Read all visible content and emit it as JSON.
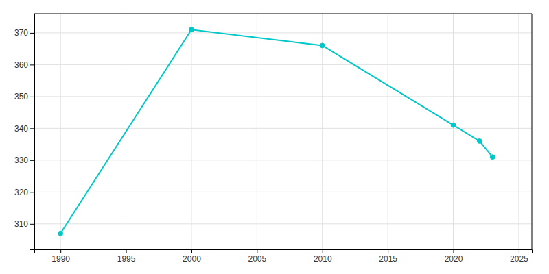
{
  "chart_data": {
    "type": "line",
    "x": [
      1990,
      2000,
      2010,
      2020,
      2022,
      2023
    ],
    "values": [
      307,
      371,
      366,
      341,
      336,
      331
    ],
    "color": "#00C8C8",
    "marker": "circle",
    "xlim": [
      1988,
      2026
    ],
    "ylim": [
      302,
      376
    ],
    "xticks": [
      1990,
      1995,
      2000,
      2005,
      2010,
      2015,
      2020,
      2025
    ],
    "yticks": [
      310,
      320,
      330,
      340,
      350,
      360,
      370
    ],
    "grid": true
  }
}
